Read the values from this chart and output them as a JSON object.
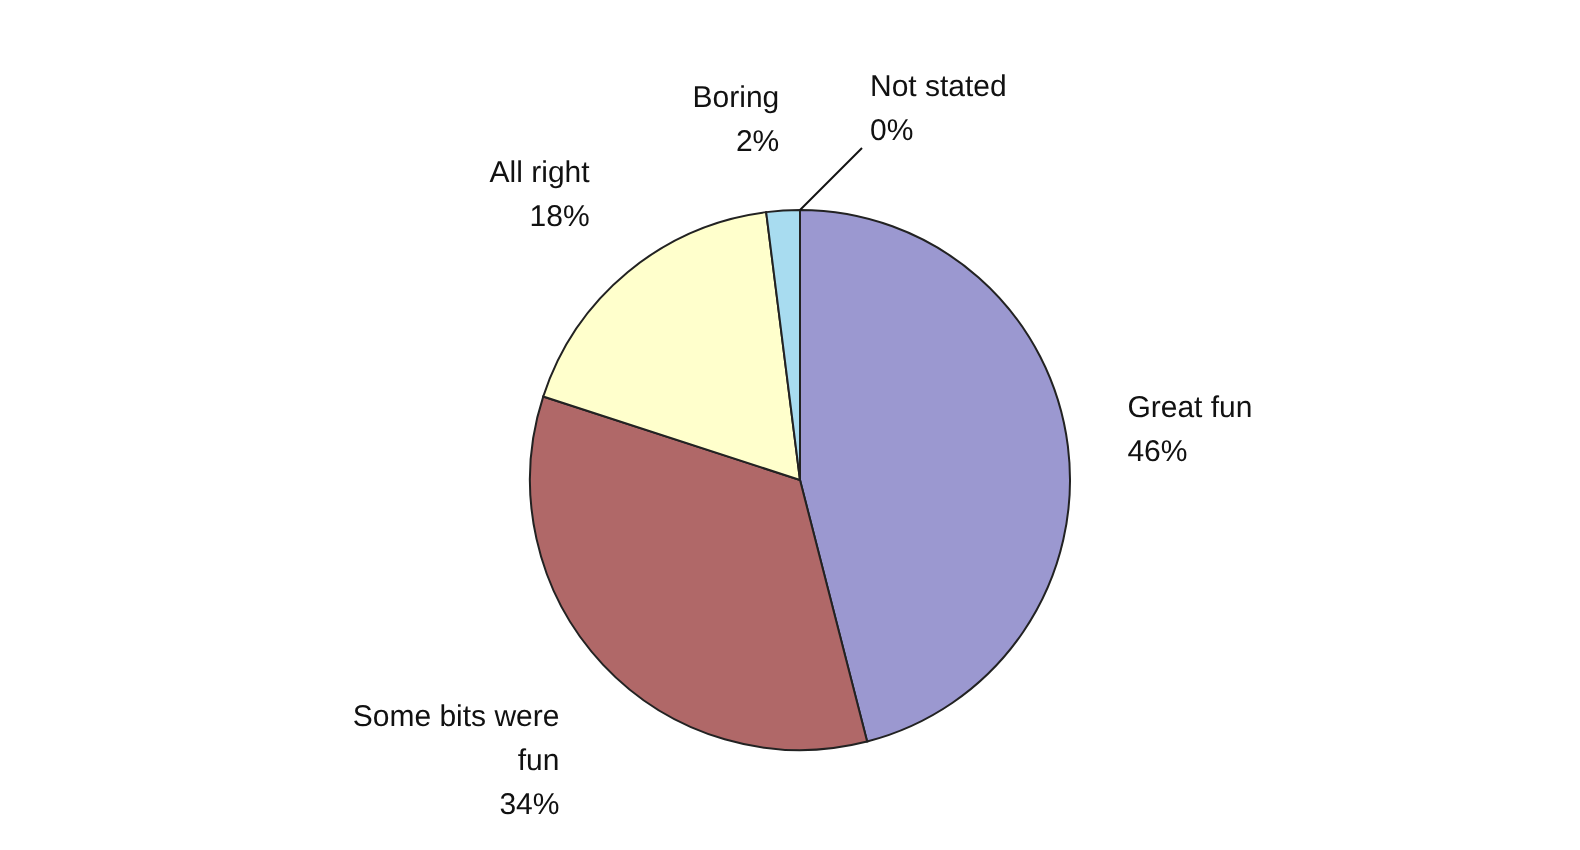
{
  "chart_data": {
    "type": "pie",
    "categories": [
      "Great fun",
      "Some bits were fun",
      "All right",
      "Boring",
      "Not stated"
    ],
    "values": [
      46,
      34,
      18,
      2,
      0
    ],
    "value_labels": [
      "46%",
      "34%",
      "18%",
      "2%",
      "0%"
    ],
    "colors": [
      "#9b98d0",
      "#b06868",
      "#ffffcc",
      "#a8dcf0",
      "#d8e8f8"
    ]
  }
}
